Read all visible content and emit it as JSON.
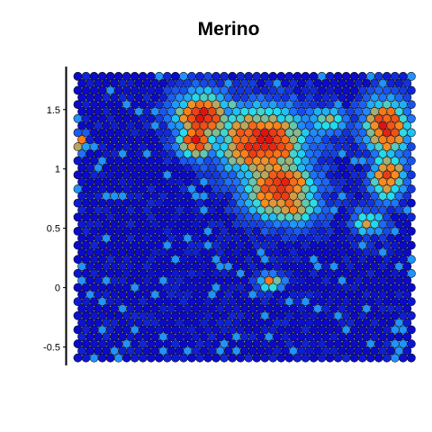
{
  "chart_data": {
    "type": "scatter",
    "subtype": "spatial hex-spot expression map",
    "title": "Merino",
    "xlabel": "",
    "ylabel": "",
    "yticks": [
      1.5,
      1,
      0.5,
      0,
      -0.5
    ],
    "ytick_labels": [
      "1.5",
      "1",
      "0.5",
      "0",
      "-0.5"
    ],
    "ylim": [
      -0.62,
      1.84
    ],
    "xlim": [
      -0.05,
      2.85
    ],
    "grid": false,
    "legend": "none",
    "color_scale": {
      "low": "#0a0ac8",
      "mid_low": "#1f78ff",
      "mid": "#22e0ee",
      "mid_high": "#ff8c1a",
      "high": "#e01212"
    },
    "spot_spacing": 0.0685,
    "row_spacing": 0.0593,
    "columns": 54,
    "rows": 41,
    "hotspots": [
      {
        "x": 1.05,
        "y": 1.45,
        "sx": 0.17,
        "sy": 0.15,
        "level": 1.0
      },
      {
        "x": 1.0,
        "y": 1.25,
        "sx": 0.12,
        "sy": 0.12,
        "level": 0.95
      },
      {
        "x": 1.55,
        "y": 1.22,
        "sx": 0.28,
        "sy": 0.22,
        "level": 1.0
      },
      {
        "x": 1.7,
        "y": 0.85,
        "sx": 0.22,
        "sy": 0.2,
        "level": 0.95
      },
      {
        "x": 1.8,
        "y": 0.7,
        "sx": 0.18,
        "sy": 0.13,
        "level": 0.75
      },
      {
        "x": 2.1,
        "y": 1.4,
        "sx": 0.13,
        "sy": 0.08,
        "level": 0.65
      },
      {
        "x": 2.6,
        "y": 1.35,
        "sx": 0.15,
        "sy": 0.18,
        "level": 0.95
      },
      {
        "x": 2.6,
        "y": 0.95,
        "sx": 0.12,
        "sy": 0.15,
        "level": 0.9
      },
      {
        "x": 2.45,
        "y": 0.55,
        "sx": 0.1,
        "sy": 0.08,
        "level": 0.65
      },
      {
        "x": 1.62,
        "y": 0.05,
        "sx": 0.08,
        "sy": 0.05,
        "level": 0.8
      },
      {
        "x": 0.02,
        "y": 1.22,
        "sx": 0.04,
        "sy": 0.06,
        "level": 0.8
      },
      {
        "x": 1.27,
        "y": 1.55,
        "sx": 0.07,
        "sy": 0.05,
        "level": 0.55
      }
    ],
    "coldspots": [
      {
        "x": 2.35,
        "y": 1.02,
        "sx": 0.09,
        "sy": 0.14,
        "depth": 0.9
      }
    ],
    "background_level": 0.0
  }
}
